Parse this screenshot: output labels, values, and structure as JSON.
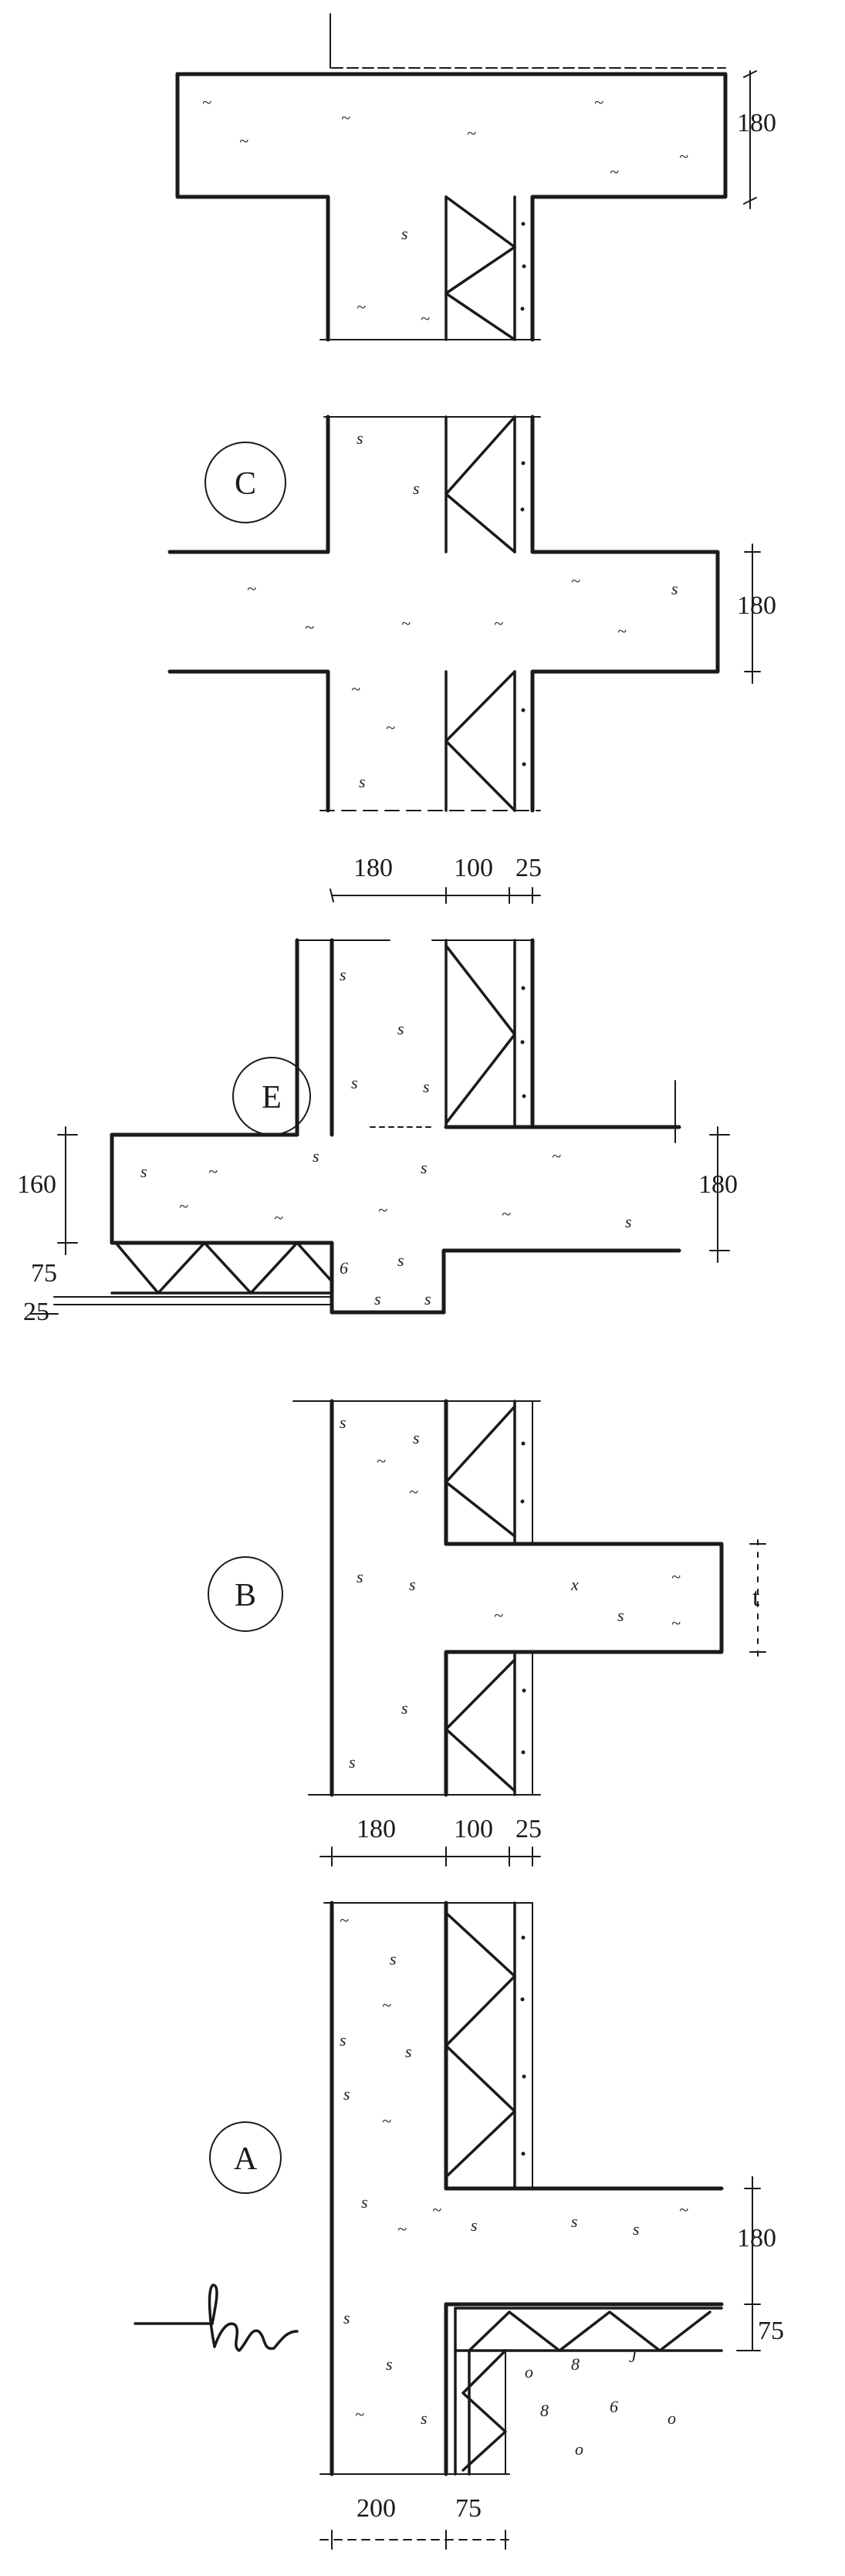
{
  "details": {
    "top": {
      "dimensions": {
        "thickness": "180"
      }
    },
    "c": {
      "label": "C",
      "dimensions": {
        "thickness": "180"
      }
    },
    "e": {
      "label": "E",
      "dimensions": {
        "wall": "180",
        "insulation": "100",
        "cladding": "25",
        "slab_left": "160",
        "slab_right": "180",
        "under_insulation": "75",
        "under_board": "25"
      }
    },
    "b": {
      "label": "B",
      "dimensions": {
        "slab": "t",
        "wall": "180",
        "insulation": "100",
        "cladding": "25"
      }
    },
    "a": {
      "label": "A",
      "dimensions": {
        "slab": "180",
        "insulation_below": "75",
        "wall": "200",
        "insulation_side": "75"
      }
    }
  },
  "colors": {
    "ink": "#1a1a1a",
    "paper": "#ffffff"
  }
}
